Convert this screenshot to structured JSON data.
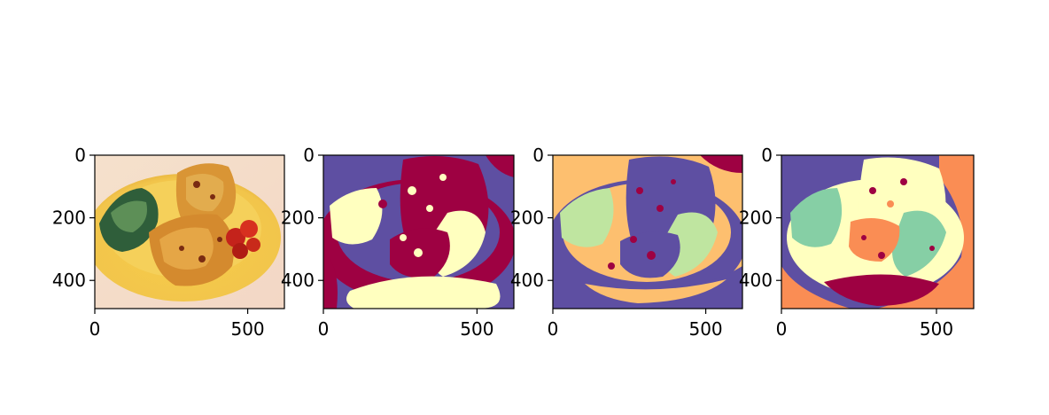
{
  "chart_data": [
    {
      "type": "image",
      "image": "photo-toast-with-greens-and-tomatoes-on-yellow-plate",
      "xlim": [
        0,
        620
      ],
      "ylim": [
        490,
        0
      ],
      "x_ticks": [
        0,
        500
      ],
      "y_ticks": [
        0,
        200,
        400
      ],
      "x_tick_labels": [
        "0",
        "500"
      ],
      "y_tick_labels": [
        "0",
        "200",
        "400"
      ]
    },
    {
      "type": "image",
      "image": "segmentation-3-clusters-spectral-colormap",
      "colors": [
        "#5e4fa2",
        "#9e0142",
        "#ffffbf"
      ],
      "xlim": [
        0,
        620
      ],
      "ylim": [
        490,
        0
      ],
      "x_ticks": [
        0,
        500
      ],
      "y_ticks": [
        0,
        200,
        400
      ],
      "x_tick_labels": [
        "0",
        "500"
      ],
      "y_tick_labels": [
        "0",
        "200",
        "400"
      ]
    },
    {
      "type": "image",
      "image": "segmentation-4-clusters-spectral-colormap",
      "colors": [
        "#5e4fa2",
        "#9e0142",
        "#fdbf6f",
        "#bfe5a0"
      ],
      "xlim": [
        0,
        620
      ],
      "ylim": [
        490,
        0
      ],
      "x_ticks": [
        0,
        500
      ],
      "y_ticks": [
        0,
        200,
        400
      ],
      "x_tick_labels": [
        "0",
        "500"
      ],
      "y_tick_labels": [
        "0",
        "200",
        "400"
      ]
    },
    {
      "type": "image",
      "image": "segmentation-5-clusters-spectral-colormap",
      "colors": [
        "#5e4fa2",
        "#9e0142",
        "#fa8d54",
        "#ffffbf",
        "#86cfa5"
      ],
      "xlim": [
        0,
        620
      ],
      "ylim": [
        490,
        0
      ],
      "x_ticks": [
        0,
        500
      ],
      "y_ticks": [
        0,
        200,
        400
      ],
      "x_tick_labels": [
        "0",
        "500"
      ],
      "y_tick_labels": [
        "0",
        "200",
        "400"
      ]
    }
  ]
}
